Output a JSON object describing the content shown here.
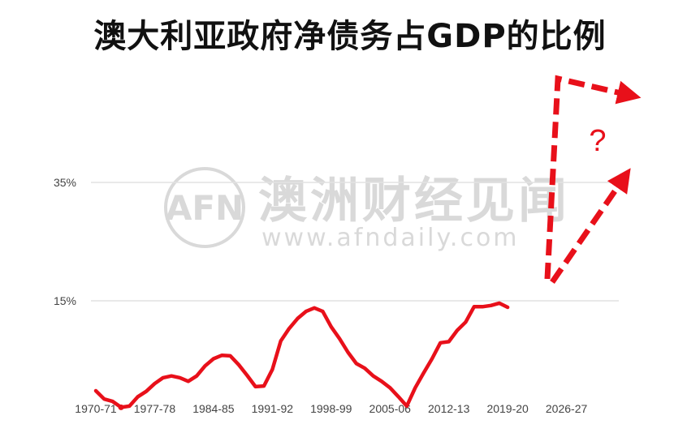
{
  "title": "澳大利亚政府净债务占GDP的比例",
  "watermark": {
    "logo_text": "AFN",
    "name": "澳洲财经见闻",
    "url": "www.afndaily.com"
  },
  "annotation": {
    "text": "?"
  },
  "colors": {
    "line": "#e8101a",
    "grid": "#e2e2e2",
    "axis_text": "#444444",
    "watermark": "#d9d9d9"
  },
  "chart_data": {
    "type": "line",
    "title": "澳大利亚政府净债务占GDP的比例",
    "xlabel": "",
    "ylabel": "",
    "ylim": [
      -3.5,
      38
    ],
    "grid": "horizontal",
    "y_ticks": [
      15,
      35
    ],
    "y_tick_labels": [
      "15%",
      "35%"
    ],
    "x_tick_labels": [
      "1970-71",
      "1977-78",
      "1984-85",
      "1991-92",
      "1998-99",
      "2005-06",
      "2012-13",
      "2019-20",
      "2026-27"
    ],
    "series": [
      {
        "x": [
          "1970-71",
          "1971-72",
          "1972-73",
          "1973-74",
          "1974-75",
          "1975-76",
          "1976-77",
          "1977-78",
          "1978-79",
          "1979-80",
          "1980-81",
          "1981-82",
          "1982-83",
          "1983-84",
          "1984-85",
          "1985-86",
          "1986-87",
          "1987-88",
          "1988-89",
          "1989-90",
          "1990-91",
          "1991-92",
          "1992-93",
          "1993-94",
          "1994-95",
          "1995-96",
          "1996-97",
          "1997-98",
          "1998-99",
          "1999-00",
          "2000-01",
          "2001-02",
          "2002-03",
          "2003-04",
          "2004-05",
          "2005-06",
          "2006-07",
          "2007-08",
          "2008-09",
          "2009-10",
          "2010-11",
          "2011-12",
          "2012-13",
          "2013-14",
          "2014-15",
          "2015-16",
          "2016-17",
          "2017-18",
          "2018-19",
          "2019-20",
          "2020-21"
        ],
        "values": [
          -0.2,
          -1.6,
          -2.0,
          -3.0,
          -2.8,
          -1.2,
          -0.3,
          1.0,
          2.0,
          2.3,
          2.0,
          1.4,
          2.3,
          4.0,
          5.2,
          5.8,
          5.7,
          4.2,
          2.4,
          0.5,
          0.6,
          3.4,
          8.2,
          10.3,
          12.0,
          13.2,
          13.8,
          13.2,
          10.6,
          8.6,
          6.3,
          4.4,
          3.6,
          2.3,
          1.4,
          0.3,
          -1.2,
          -2.8,
          0.3,
          2.8,
          5.2,
          7.9,
          8.1,
          10.0,
          11.4,
          14.0,
          14.0,
          14.2,
          14.6,
          13.9,
          null
        ]
      }
    ],
    "annotations": [
      {
        "kind": "dashed-arrow",
        "description": "projection arrow upward then right"
      },
      {
        "kind": "dashed-arrow",
        "description": "projection arrow diagonally up-right"
      },
      {
        "kind": "text",
        "text": "?"
      }
    ]
  }
}
